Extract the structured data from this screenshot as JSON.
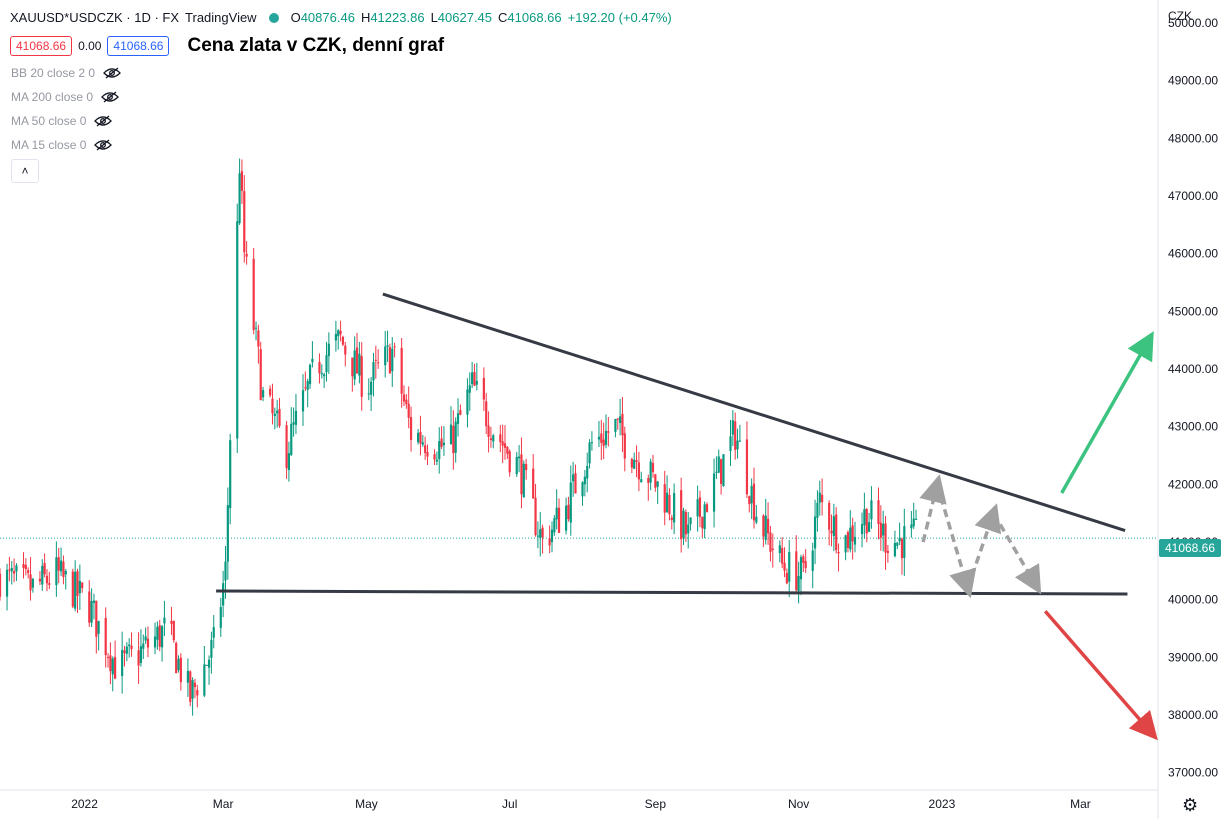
{
  "header": {
    "symbol": "XAUUSD*USDCZK · 1D · FX",
    "platform": "TradingView",
    "open_label": "O",
    "open_value": "40876.46",
    "high_label": "H",
    "high_value": "41223.86",
    "low_label": "L",
    "low_value": "40627.45",
    "close_label": "C",
    "close_value": "41068.66",
    "change": "+192.20 (+0.47%)"
  },
  "price_row": {
    "bid": "41068.66",
    "spread": "0.00",
    "ask": "41068.66"
  },
  "title": "Cena zlata v CZK, denní graf",
  "indicators": [
    {
      "label": "BB 20 close 2 0"
    },
    {
      "label": "MA 200 close 0"
    },
    {
      "label": "MA 50 close 0"
    },
    {
      "label": "MA 15 close 0"
    }
  ],
  "collapse_glyph": "˄",
  "gear_glyph": "⚙",
  "axis": {
    "unit": "CZK",
    "last_price_label": "41068.66"
  },
  "colors": {
    "up": "#089981",
    "down": "#f23645",
    "trendline": "#363a45",
    "bullish_arrow": "#3cc37f",
    "bearish_arrow": "#e04545",
    "scenario_arrow": "#a0a0a0",
    "last_price_bg": "#26a69a"
  },
  "chart_data": {
    "type": "candlestick",
    "title": "Cena zlata v CZK, denní graf",
    "ylabel": "CZK",
    "ylim": [
      36700,
      50400
    ],
    "y_ticks": [
      "50000.00",
      "49000.00",
      "48000.00",
      "47000.00",
      "46000.00",
      "45000.00",
      "44000.00",
      "43000.00",
      "42000.00",
      "41000.00",
      "40000.00",
      "39000.00",
      "38000.00",
      "37000.00"
    ],
    "y_tick_values": [
      50000,
      49000,
      48000,
      47000,
      46000,
      45000,
      44000,
      43000,
      42000,
      41000,
      40000,
      39000,
      38000,
      37000
    ],
    "x_ticks": [
      {
        "label": "2022",
        "date": "2022-01-01"
      },
      {
        "label": "Mar",
        "date": "2022-03-01"
      },
      {
        "label": "May",
        "date": "2022-05-01"
      },
      {
        "label": "Jul",
        "date": "2022-07-01"
      },
      {
        "label": "Sep",
        "date": "2022-09-01"
      },
      {
        "label": "Nov",
        "date": "2022-11-01"
      },
      {
        "label": "2023",
        "date": "2023-01-01"
      },
      {
        "label": "Mar",
        "date": "2023-03-01"
      }
    ],
    "x_range": [
      "2021-11-26",
      "2023-04-03"
    ],
    "last_price": 41068.66,
    "series": [
      {
        "date": "2021-11-26",
        "close": 40400
      },
      {
        "date": "2021-12-10",
        "close": 40200
      },
      {
        "date": "2021-12-20",
        "close": 40450
      },
      {
        "date": "2022-01-03",
        "close": 39900
      },
      {
        "date": "2022-01-15",
        "close": 38800
      },
      {
        "date": "2022-01-25",
        "close": 39100
      },
      {
        "date": "2022-02-05",
        "close": 39500
      },
      {
        "date": "2022-02-15",
        "close": 38300
      },
      {
        "date": "2022-02-25",
        "close": 39200
      },
      {
        "date": "2022-03-02",
        "close": 40500
      },
      {
        "date": "2022-03-08",
        "close": 47600
      },
      {
        "date": "2022-03-10",
        "close": 46000
      },
      {
        "date": "2022-03-18",
        "close": 43500
      },
      {
        "date": "2022-03-28",
        "close": 42600
      },
      {
        "date": "2022-04-10",
        "close": 44100
      },
      {
        "date": "2022-04-20",
        "close": 44500
      },
      {
        "date": "2022-05-01",
        "close": 43700
      },
      {
        "date": "2022-05-12",
        "close": 44300
      },
      {
        "date": "2022-05-20",
        "close": 42900
      },
      {
        "date": "2022-06-05",
        "close": 42600
      },
      {
        "date": "2022-06-15",
        "close": 43700
      },
      {
        "date": "2022-06-25",
        "close": 42900
      },
      {
        "date": "2022-07-05",
        "close": 42300
      },
      {
        "date": "2022-07-15",
        "close": 41000
      },
      {
        "date": "2022-07-25",
        "close": 41600
      },
      {
        "date": "2022-08-05",
        "close": 42700
      },
      {
        "date": "2022-08-15",
        "close": 43000
      },
      {
        "date": "2022-08-25",
        "close": 42400
      },
      {
        "date": "2022-09-05",
        "close": 41800
      },
      {
        "date": "2022-09-15",
        "close": 41100
      },
      {
        "date": "2022-09-25",
        "close": 41900
      },
      {
        "date": "2022-10-05",
        "close": 42900
      },
      {
        "date": "2022-10-15",
        "close": 41400
      },
      {
        "date": "2022-10-25",
        "close": 40600
      },
      {
        "date": "2022-11-03",
        "close": 40400
      },
      {
        "date": "2022-11-10",
        "close": 41700
      },
      {
        "date": "2022-11-20",
        "close": 41000
      },
      {
        "date": "2022-11-30",
        "close": 41500
      },
      {
        "date": "2022-12-10",
        "close": 41000
      },
      {
        "date": "2022-12-21",
        "close": 41069
      }
    ],
    "annotations": {
      "resistance_trendline": [
        {
          "date": "2022-05-08",
          "price": 45300
        },
        {
          "date": "2023-03-20",
          "price": 41200
        }
      ],
      "support_line": [
        {
          "date": "2022-02-26",
          "price": 40150
        },
        {
          "date": "2023-03-21",
          "price": 40100
        }
      ],
      "bullish_arrow": [
        {
          "date": "2023-02-21",
          "price": 41850
        },
        {
          "date": "2023-03-30",
          "price": 44500
        }
      ],
      "bearish_arrow": [
        {
          "date": "2023-02-14",
          "price": 39800
        },
        {
          "date": "2023-03-31",
          "price": 37700
        }
      ],
      "scenario_path": [
        {
          "date": "2022-12-24",
          "price": 41000
        },
        {
          "date": "2022-12-30",
          "price": 42000
        },
        {
          "date": "2023-01-12",
          "price": 40200
        },
        {
          "date": "2023-01-23",
          "price": 41500
        },
        {
          "date": "2023-02-10",
          "price": 40250
        }
      ]
    }
  }
}
